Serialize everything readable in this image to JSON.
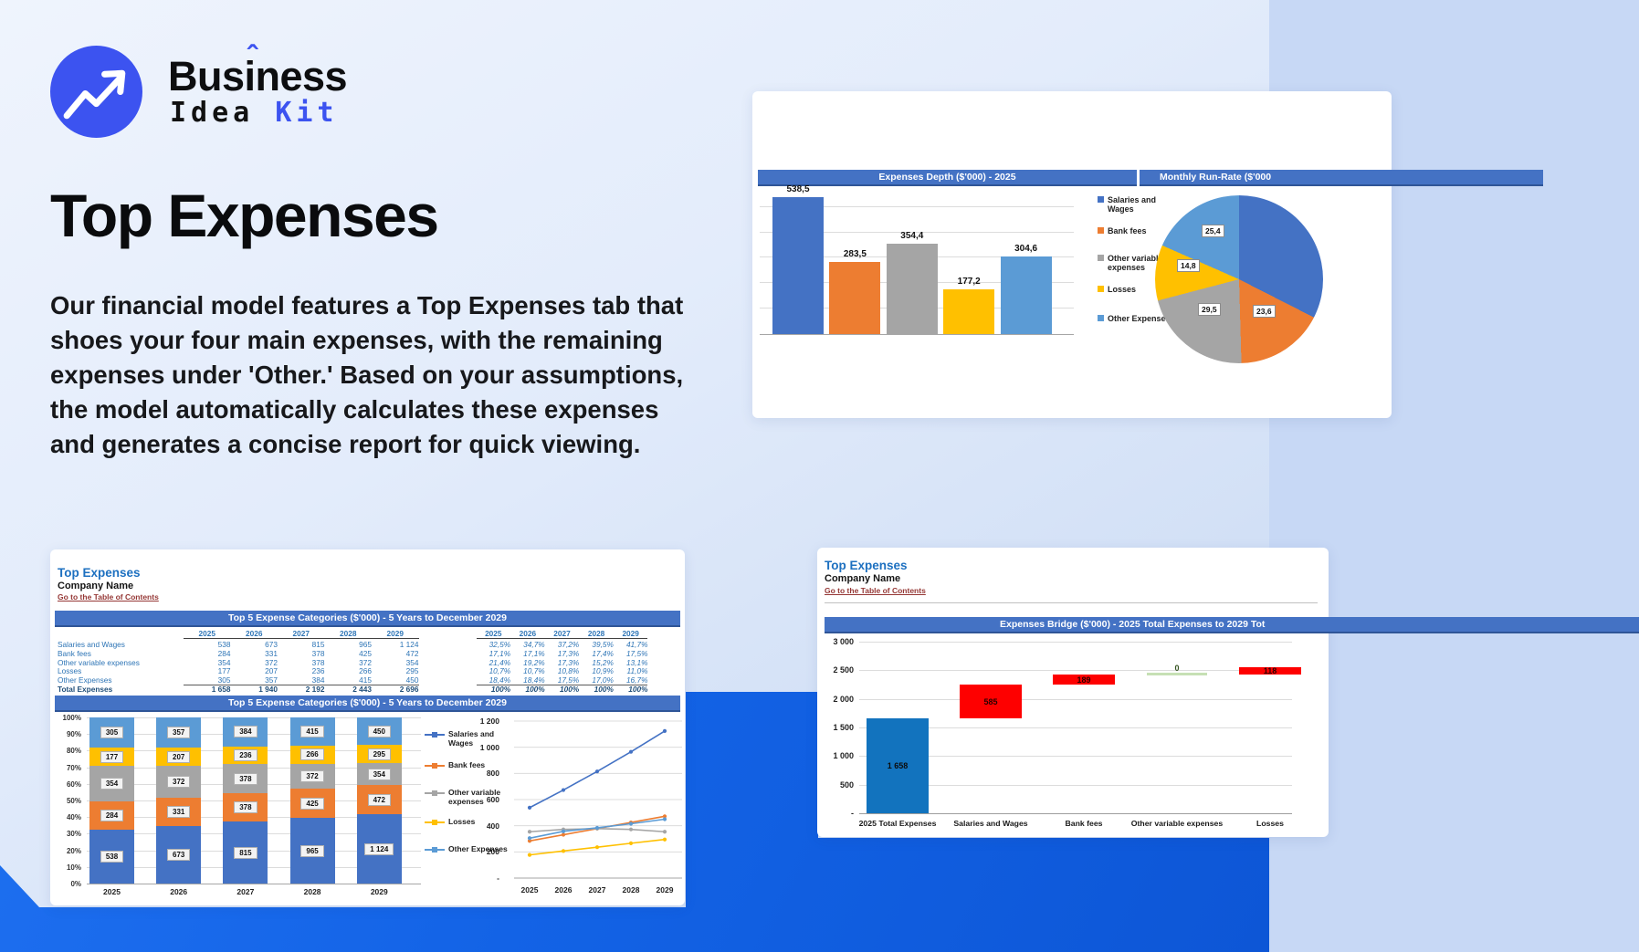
{
  "logo": {
    "word": "Business",
    "caret": "ˆ",
    "idea": "Idea",
    "kit": "Kit"
  },
  "hero": {
    "title": "Top Expenses",
    "body": "Our financial model features a Top Expenses tab that shoes your four main expenses, with the remaining expenses under 'Other.' Based on your assumptions, the model automatically calculates these expenses and generates a concise report for quick viewing."
  },
  "colors": {
    "series": [
      "#4472C4",
      "#ED7D31",
      "#A5A5A5",
      "#FFC000",
      "#5B9BD5"
    ],
    "accent_blue": "#3c53f0",
    "titlebar": "#4472C4",
    "waterfall_total": "#1273BE",
    "waterfall_increase": "#FE0000",
    "waterfall_zero": "#C6E0B4",
    "link": "#953735"
  },
  "depth_card": {
    "bar_title": "Expenses Depth ($'000) - 2025",
    "pie_title": "Monthly Run-Rate ($'000",
    "legend": [
      "Salaries and Wages",
      "Bank fees",
      "Other variable expenses",
      "Losses",
      "Other Expenses"
    ],
    "bar_labels": [
      "538,5",
      "283,5",
      "354,4",
      "177,2",
      "304,6"
    ],
    "bar_values": [
      538.5,
      283.5,
      354.4,
      177.2,
      304.6
    ],
    "pie_labels": [
      "25,4",
      "14,8",
      "29,5",
      "23,6"
    ],
    "pie_values": [
      44.9,
      23.6,
      29.5,
      14.8,
      25.4
    ]
  },
  "sheet_left": {
    "title": "Top Expenses",
    "company": "Company Name",
    "link": "Go to the Table of Contents",
    "section_title": "Top 5 Expense Categories ($'000) - 5 Years to December 2029",
    "chart_section_title": "Top 5 Expense Categories ($'000) - 5 Years to December 2029",
    "years": [
      "2025",
      "2026",
      "2027",
      "2028",
      "2029"
    ],
    "rows": [
      {
        "label": "Salaries and Wages",
        "values": [
          "538",
          "673",
          "815",
          "965",
          "1 124"
        ],
        "pcts": [
          "32,5%",
          "34,7%",
          "37,2%",
          "39,5%",
          "41,7%"
        ]
      },
      {
        "label": "Bank fees",
        "values": [
          "284",
          "331",
          "378",
          "425",
          "472"
        ],
        "pcts": [
          "17,1%",
          "17,1%",
          "17,3%",
          "17,4%",
          "17,5%"
        ]
      },
      {
        "label": "Other variable expenses",
        "values": [
          "354",
          "372",
          "378",
          "372",
          "354"
        ],
        "pcts": [
          "21,4%",
          "19,2%",
          "17,3%",
          "15,2%",
          "13,1%"
        ]
      },
      {
        "label": "Losses",
        "values": [
          "177",
          "207",
          "236",
          "266",
          "295"
        ],
        "pcts": [
          "10,7%",
          "10,7%",
          "10,8%",
          "10,9%",
          "11,0%"
        ]
      },
      {
        "label": "Other Expenses",
        "values": [
          "305",
          "357",
          "384",
          "415",
          "450"
        ],
        "pcts": [
          "18,4%",
          "18,4%",
          "17,5%",
          "17,0%",
          "16,7%"
        ]
      }
    ],
    "total": {
      "label": "Total Expenses",
      "values": [
        "1 658",
        "1 940",
        "2 192",
        "2 443",
        "2 696"
      ],
      "pcts": [
        "100%",
        "100%",
        "100%",
        "100%",
        "100%"
      ]
    },
    "stacked": {
      "y_ticks": [
        "100%",
        "90%",
        "80%",
        "70%",
        "60%",
        "50%",
        "40%",
        "30%",
        "20%",
        "10%",
        "0%"
      ],
      "pct": [
        [
          32.5,
          17.1,
          21.4,
          10.7,
          18.4
        ],
        [
          34.7,
          17.1,
          19.2,
          10.7,
          18.4
        ],
        [
          37.2,
          17.3,
          17.3,
          10.8,
          17.5
        ],
        [
          39.5,
          17.4,
          15.2,
          10.9,
          17.0
        ],
        [
          41.7,
          17.5,
          13.1,
          11.0,
          16.7
        ]
      ]
    },
    "line": {
      "y_ticks": [
        "1 200",
        "1 000",
        "800",
        "600",
        "400",
        "200",
        "-"
      ],
      "series": [
        [
          538,
          673,
          815,
          965,
          1124
        ],
        [
          284,
          331,
          378,
          425,
          472
        ],
        [
          354,
          372,
          378,
          372,
          354
        ],
        [
          177,
          207,
          236,
          266,
          295
        ],
        [
          305,
          357,
          384,
          415,
          450
        ]
      ]
    },
    "legend": [
      "Salaries and Wages",
      "Bank fees",
      "Other variable expenses",
      "Losses",
      "Other Expenses"
    ]
  },
  "sheet_right": {
    "title": "Top Expenses",
    "company": "Company Name",
    "link": "Go to the Table of Contents",
    "section_title": "Expenses Bridge ($'000) - 2025 Total Expenses to 2029 Tot",
    "y_ticks": [
      "3 000",
      "2 500",
      "2 000",
      "1 500",
      "1 000",
      "500",
      "-"
    ],
    "categories": [
      "2025 Total Expenses",
      "Salaries and Wages",
      "Bank fees",
      "Other variable expenses",
      "Losses"
    ],
    "bars": [
      {
        "label": "1 658",
        "from": 0,
        "to": 1658,
        "type": "total"
      },
      {
        "label": "585",
        "from": 1658,
        "to": 2243,
        "type": "increase"
      },
      {
        "label": "189",
        "from": 2243,
        "to": 2432,
        "type": "increase"
      },
      {
        "label": "0",
        "from": 2432,
        "to": 2432,
        "type": "zero"
      },
      {
        "label": "118",
        "from": 2432,
        "to": 2550,
        "type": "increase"
      }
    ]
  },
  "chart_data": [
    {
      "type": "bar",
      "title": "Expenses Depth ($'000) - 2025",
      "categories": [
        "Salaries and Wages",
        "Bank fees",
        "Other variable expenses",
        "Losses",
        "Other Expenses"
      ],
      "values": [
        538.5,
        283.5,
        354.4,
        177.2,
        304.6
      ],
      "ylim": [
        0,
        600
      ],
      "grid": true,
      "legend_position": "right"
    },
    {
      "type": "pie",
      "title": "Monthly Run-Rate ($'000",
      "labels": [
        "Salaries and Wages",
        "Bank fees",
        "Other variable expenses",
        "Losses",
        "Other Expenses"
      ],
      "values": [
        44.9,
        23.6,
        29.5,
        14.8,
        25.4
      ]
    },
    {
      "type": "bar",
      "subtype": "stacked-100pct",
      "title": "Top 5 Expense Categories ($'000) - 5 Years to December 2029",
      "categories": [
        "2025",
        "2026",
        "2027",
        "2028",
        "2029"
      ],
      "series": [
        {
          "name": "Salaries and Wages",
          "values": [
            538,
            673,
            815,
            965,
            1124
          ]
        },
        {
          "name": "Bank fees",
          "values": [
            284,
            331,
            378,
            425,
            472
          ]
        },
        {
          "name": "Other variable expenses",
          "values": [
            354,
            372,
            378,
            372,
            354
          ]
        },
        {
          "name": "Losses",
          "values": [
            177,
            207,
            236,
            266,
            295
          ]
        },
        {
          "name": "Other Expenses",
          "values": [
            305,
            357,
            384,
            415,
            450
          ]
        }
      ],
      "ylabel": "",
      "ylim_pct": [
        0,
        100
      ],
      "grid": true
    },
    {
      "type": "line",
      "title": "Top 5 Expense Categories ($'000) - 5 Years to December 2029",
      "x": [
        "2025",
        "2026",
        "2027",
        "2028",
        "2029"
      ],
      "series": [
        {
          "name": "Salaries and Wages",
          "values": [
            538,
            673,
            815,
            965,
            1124
          ]
        },
        {
          "name": "Bank fees",
          "values": [
            284,
            331,
            378,
            425,
            472
          ]
        },
        {
          "name": "Other variable expenses",
          "values": [
            354,
            372,
            378,
            372,
            354
          ]
        },
        {
          "name": "Losses",
          "values": [
            177,
            207,
            236,
            266,
            295
          ]
        },
        {
          "name": "Other Expenses",
          "values": [
            305,
            357,
            384,
            415,
            450
          ]
        }
      ],
      "ylim": [
        0,
        1200
      ],
      "grid": true
    },
    {
      "type": "waterfall",
      "title": "Expenses Bridge ($'000) - 2025 Total Expenses to 2029 Tot",
      "categories": [
        "2025 Total Expenses",
        "Salaries and Wages",
        "Bank fees",
        "Other variable expenses",
        "Losses"
      ],
      "values": [
        1658,
        585,
        189,
        0,
        118
      ],
      "ylim": [
        0,
        3000
      ],
      "grid": true
    }
  ]
}
